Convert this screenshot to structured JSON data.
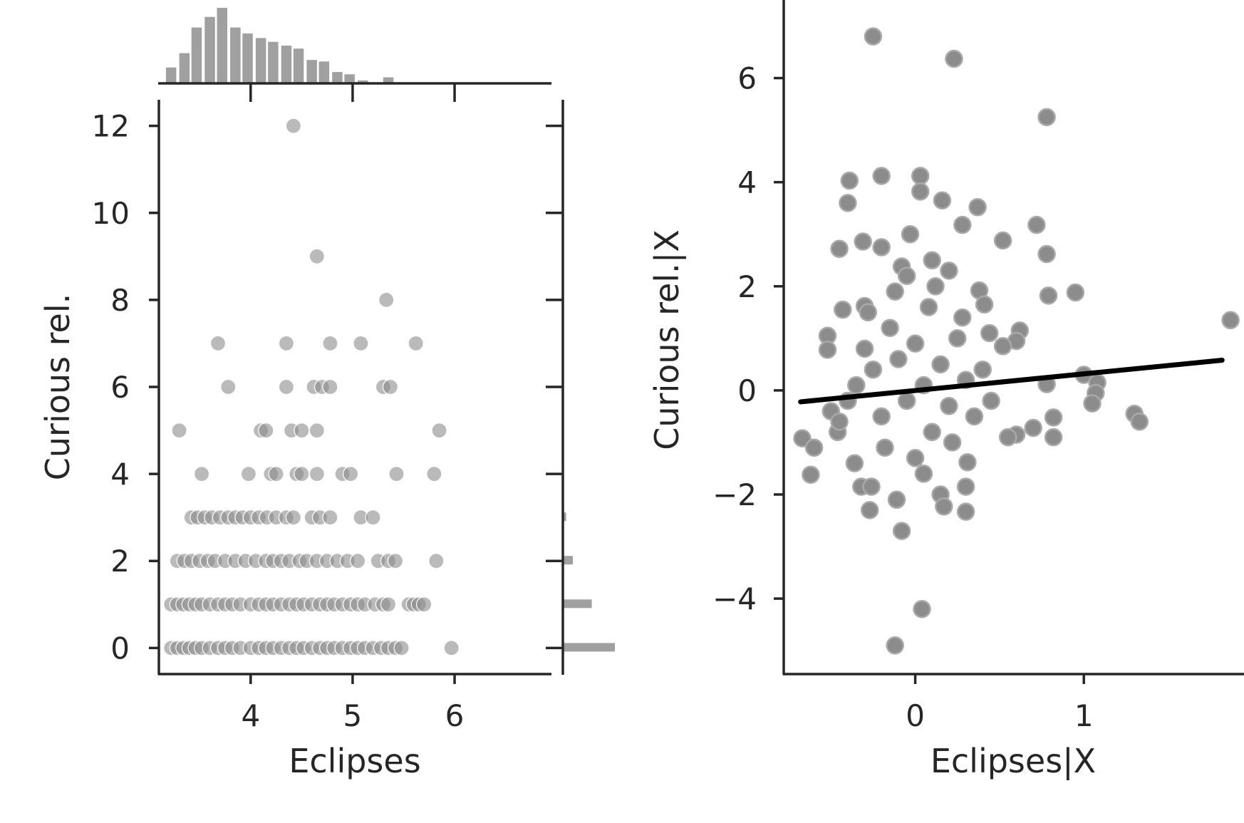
{
  "chart_data": [
    {
      "type": "scatter",
      "panel": "left joint plot with marginal histograms",
      "xlabel": "Eclipses",
      "ylabel": "Curious rel.",
      "xlim": [
        3.1,
        6.95
      ],
      "ylim": [
        -0.6,
        12.6
      ],
      "xticks": [
        4,
        5,
        6
      ],
      "yticks": [
        0,
        2,
        4,
        6,
        8,
        10,
        12
      ],
      "grid": false,
      "point_color": "#8c8c8c",
      "points": [
        [
          4.42,
          12
        ],
        [
          4.65,
          9
        ],
        [
          5.33,
          8
        ],
        [
          3.68,
          7
        ],
        [
          4.35,
          7
        ],
        [
          4.78,
          7
        ],
        [
          5.08,
          7
        ],
        [
          5.62,
          7
        ],
        [
          3.78,
          6
        ],
        [
          4.35,
          6
        ],
        [
          4.62,
          6
        ],
        [
          4.7,
          6
        ],
        [
          4.78,
          6
        ],
        [
          5.3,
          6
        ],
        [
          5.37,
          6
        ],
        [
          3.3,
          5
        ],
        [
          4.1,
          5
        ],
        [
          4.15,
          5
        ],
        [
          4.4,
          5
        ],
        [
          4.5,
          5
        ],
        [
          4.65,
          5
        ],
        [
          5.85,
          5
        ],
        [
          3.52,
          4
        ],
        [
          3.98,
          4
        ],
        [
          4.2,
          4
        ],
        [
          4.25,
          4
        ],
        [
          4.45,
          4
        ],
        [
          4.5,
          4
        ],
        [
          4.65,
          4
        ],
        [
          4.9,
          4
        ],
        [
          4.98,
          4
        ],
        [
          5.43,
          4
        ],
        [
          5.8,
          4
        ],
        [
          3.42,
          3
        ],
        [
          3.48,
          3
        ],
        [
          3.55,
          3
        ],
        [
          3.62,
          3
        ],
        [
          3.7,
          3
        ],
        [
          3.78,
          3
        ],
        [
          3.85,
          3
        ],
        [
          3.92,
          3
        ],
        [
          4.0,
          3
        ],
        [
          4.08,
          3
        ],
        [
          4.16,
          3
        ],
        [
          4.25,
          3
        ],
        [
          4.35,
          3
        ],
        [
          4.42,
          3
        ],
        [
          4.6,
          3
        ],
        [
          4.68,
          3
        ],
        [
          4.78,
          3
        ],
        [
          5.08,
          3
        ],
        [
          5.2,
          3
        ],
        [
          3.28,
          2
        ],
        [
          3.35,
          2
        ],
        [
          3.42,
          2
        ],
        [
          3.5,
          2
        ],
        [
          3.58,
          2
        ],
        [
          3.65,
          2
        ],
        [
          3.75,
          2
        ],
        [
          3.85,
          2
        ],
        [
          3.95,
          2
        ],
        [
          4.05,
          2
        ],
        [
          4.15,
          2
        ],
        [
          4.22,
          2
        ],
        [
          4.3,
          2
        ],
        [
          4.38,
          2
        ],
        [
          4.48,
          2
        ],
        [
          4.55,
          2
        ],
        [
          4.65,
          2
        ],
        [
          4.75,
          2
        ],
        [
          4.85,
          2
        ],
        [
          4.95,
          2
        ],
        [
          5.05,
          2
        ],
        [
          5.25,
          2
        ],
        [
          5.35,
          2
        ],
        [
          5.42,
          2
        ],
        [
          5.82,
          2
        ],
        [
          3.22,
          1
        ],
        [
          3.28,
          1
        ],
        [
          3.34,
          1
        ],
        [
          3.4,
          1
        ],
        [
          3.46,
          1
        ],
        [
          3.52,
          1
        ],
        [
          3.6,
          1
        ],
        [
          3.68,
          1
        ],
        [
          3.75,
          1
        ],
        [
          3.82,
          1
        ],
        [
          3.9,
          1
        ],
        [
          4.0,
          1
        ],
        [
          4.08,
          1
        ],
        [
          4.15,
          1
        ],
        [
          4.22,
          1
        ],
        [
          4.3,
          1
        ],
        [
          4.38,
          1
        ],
        [
          4.45,
          1
        ],
        [
          4.52,
          1
        ],
        [
          4.6,
          1
        ],
        [
          4.68,
          1
        ],
        [
          4.75,
          1
        ],
        [
          4.82,
          1
        ],
        [
          4.9,
          1
        ],
        [
          4.98,
          1
        ],
        [
          5.05,
          1
        ],
        [
          5.12,
          1
        ],
        [
          5.22,
          1
        ],
        [
          5.3,
          1
        ],
        [
          5.35,
          1
        ],
        [
          5.55,
          1
        ],
        [
          5.6,
          1
        ],
        [
          5.65,
          1
        ],
        [
          5.7,
          1
        ],
        [
          3.22,
          0
        ],
        [
          3.28,
          0
        ],
        [
          3.34,
          0
        ],
        [
          3.4,
          0
        ],
        [
          3.46,
          0
        ],
        [
          3.52,
          0
        ],
        [
          3.6,
          0
        ],
        [
          3.68,
          0
        ],
        [
          3.75,
          0
        ],
        [
          3.82,
          0
        ],
        [
          3.9,
          0
        ],
        [
          4.0,
          0
        ],
        [
          4.08,
          0
        ],
        [
          4.15,
          0
        ],
        [
          4.22,
          0
        ],
        [
          4.3,
          0
        ],
        [
          4.38,
          0
        ],
        [
          4.45,
          0
        ],
        [
          4.52,
          0
        ],
        [
          4.6,
          0
        ],
        [
          4.68,
          0
        ],
        [
          4.75,
          0
        ],
        [
          4.82,
          0
        ],
        [
          4.9,
          0
        ],
        [
          4.98,
          0
        ],
        [
          5.05,
          0
        ],
        [
          5.12,
          0
        ],
        [
          5.2,
          0
        ],
        [
          5.28,
          0
        ],
        [
          5.35,
          0
        ],
        [
          5.42,
          0
        ],
        [
          5.48,
          0
        ],
        [
          5.97,
          0
        ]
      ],
      "marginal_x_histogram": {
        "bin_centers": [
          3.22,
          3.35,
          3.47,
          3.6,
          3.72,
          3.85,
          3.97,
          4.1,
          4.22,
          4.35,
          4.47,
          4.6,
          4.72,
          4.85,
          4.97,
          5.1,
          5.22,
          5.35
        ],
        "relative_heights": [
          0.21,
          0.4,
          0.74,
          0.88,
          1.0,
          0.74,
          0.66,
          0.6,
          0.55,
          0.5,
          0.46,
          0.31,
          0.29,
          0.15,
          0.12,
          0.04,
          0.0,
          0.08
        ]
      },
      "marginal_y_histogram": {
        "values": [
          0,
          1,
          2,
          3
        ],
        "relative_widths": [
          1.0,
          0.55,
          0.18,
          0.05
        ]
      }
    },
    {
      "type": "scatter",
      "panel": "right partial regression plot",
      "xlabel": "Eclipses|X",
      "ylabel": "Curious rel.|X",
      "xlim": [
        -0.78,
        1.95
      ],
      "ylim": [
        -5.45,
        7.5
      ],
      "xticks": [
        0,
        1
      ],
      "yticks": [
        -4,
        -2,
        0,
        2,
        4,
        6
      ],
      "ytick_labels": [
        "−4",
        "−2",
        "0",
        "2",
        "4",
        "6"
      ],
      "grid": false,
      "point_color": "#8c8c8c",
      "regression_line": {
        "x": [
          -0.68,
          1.82
        ],
        "y": [
          -0.22,
          0.58
        ],
        "color": "#000000"
      },
      "points": [
        [
          -0.25,
          6.8
        ],
        [
          0.23,
          6.37
        ],
        [
          0.78,
          5.25
        ],
        [
          -0.39,
          4.03
        ],
        [
          -0.2,
          4.12
        ],
        [
          0.03,
          4.12
        ],
        [
          -0.4,
          3.6
        ],
        [
          0.03,
          3.82
        ],
        [
          0.16,
          3.65
        ],
        [
          0.37,
          3.52
        ],
        [
          0.28,
          3.18
        ],
        [
          -0.03,
          3.0
        ],
        [
          0.72,
          3.18
        ],
        [
          0.52,
          2.88
        ],
        [
          -0.31,
          2.86
        ],
        [
          -0.2,
          2.75
        ],
        [
          -0.45,
          2.72
        ],
        [
          0.78,
          2.62
        ],
        [
          -0.08,
          2.38
        ],
        [
          0.1,
          2.5
        ],
        [
          0.2,
          2.3
        ],
        [
          0.95,
          1.88
        ],
        [
          0.79,
          1.82
        ],
        [
          0.38,
          1.92
        ],
        [
          0.41,
          1.65
        ],
        [
          -0.43,
          1.55
        ],
        [
          -0.3,
          1.62
        ],
        [
          0.62,
          1.15
        ],
        [
          -0.52,
          1.05
        ],
        [
          0.44,
          1.1
        ],
        [
          0.6,
          0.95
        ],
        [
          -0.52,
          0.78
        ],
        [
          0.52,
          0.85
        ],
        [
          1.0,
          0.3
        ],
        [
          1.08,
          0.15
        ],
        [
          1.07,
          -0.05
        ],
        [
          0.78,
          0.12
        ],
        [
          1.05,
          -0.25
        ],
        [
          1.3,
          -0.45
        ],
        [
          1.33,
          -0.6
        ],
        [
          1.87,
          1.35
        ],
        [
          0.82,
          -0.52
        ],
        [
          0.7,
          -0.72
        ],
        [
          0.6,
          -0.85
        ],
        [
          0.55,
          -0.9
        ],
        [
          0.82,
          -0.9
        ],
        [
          -0.67,
          -0.92
        ],
        [
          -0.6,
          -1.1
        ],
        [
          -0.62,
          -1.62
        ],
        [
          -0.32,
          -1.85
        ],
        [
          -0.26,
          -1.85
        ],
        [
          0.3,
          -1.85
        ],
        [
          -0.27,
          -2.3
        ],
        [
          -0.11,
          -2.1
        ],
        [
          0.15,
          -2.0
        ],
        [
          0.17,
          -2.23
        ],
        [
          0.3,
          -2.33
        ],
        [
          -0.08,
          -2.7
        ],
        [
          0.04,
          -4.2
        ],
        [
          -0.12,
          -4.9
        ],
        [
          -0.46,
          -0.8
        ],
        [
          -0.36,
          -1.4
        ],
        [
          0.31,
          -1.38
        ],
        [
          -0.4,
          -0.2
        ],
        [
          -0.5,
          -0.4
        ],
        [
          -0.45,
          -0.6
        ],
        [
          -0.3,
          0.8
        ],
        [
          -0.25,
          0.4
        ],
        [
          -0.2,
          -0.5
        ],
        [
          -0.15,
          1.2
        ],
        [
          -0.1,
          0.6
        ],
        [
          -0.05,
          -0.2
        ],
        [
          0.0,
          0.9
        ],
        [
          0.05,
          0.1
        ],
        [
          0.1,
          -0.8
        ],
        [
          0.15,
          0.5
        ],
        [
          0.2,
          -0.3
        ],
        [
          0.25,
          1.0
        ],
        [
          0.3,
          0.2
        ],
        [
          0.35,
          -0.5
        ],
        [
          -0.18,
          -1.1
        ],
        [
          0.0,
          -1.3
        ],
        [
          0.22,
          -1.0
        ],
        [
          -0.28,
          1.5
        ],
        [
          0.08,
          1.6
        ],
        [
          -0.12,
          1.9
        ],
        [
          0.12,
          2.0
        ],
        [
          0.28,
          1.4
        ],
        [
          -0.35,
          0.1
        ],
        [
          0.4,
          0.4
        ],
        [
          0.45,
          -0.2
        ],
        [
          -0.05,
          2.2
        ],
        [
          0.05,
          -1.6
        ]
      ]
    }
  ]
}
